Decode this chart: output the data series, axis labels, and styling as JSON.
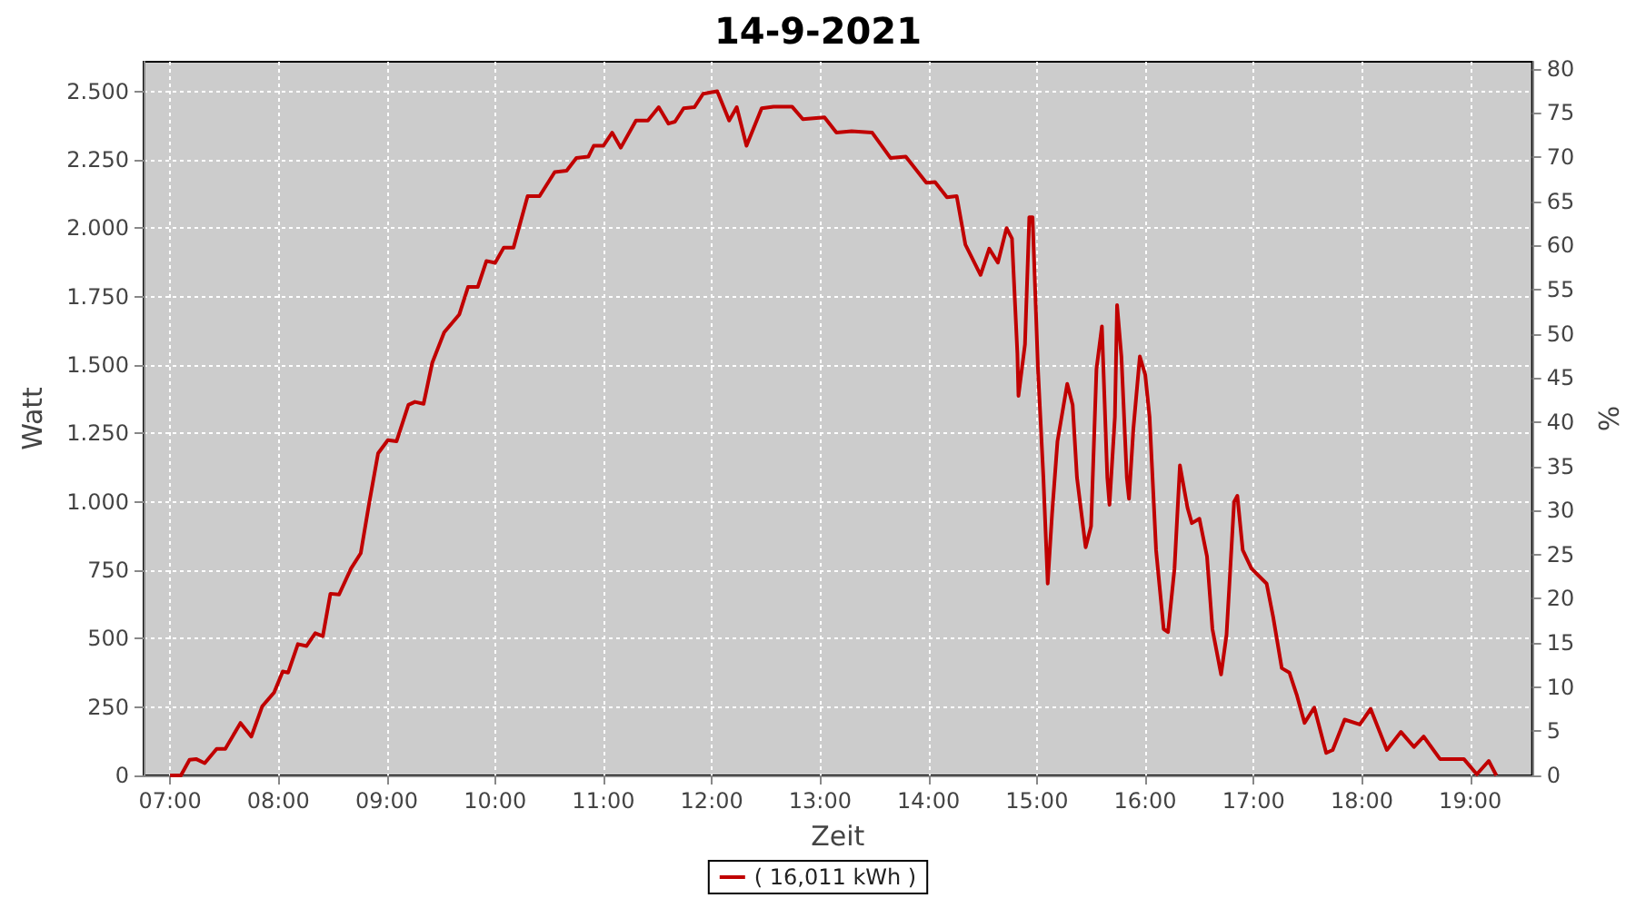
{
  "chart_data": {
    "type": "line",
    "title": "14-9-2021",
    "xlabel": "Zeit",
    "ylabel": "Watt",
    "y2label": "%",
    "x": [
      7.0,
      7.1,
      7.18,
      7.24,
      7.32,
      7.43,
      7.51,
      7.65,
      7.75,
      7.85,
      7.96,
      8.04,
      8.09,
      8.18,
      8.26,
      8.34,
      8.41,
      8.48,
      8.56,
      8.67,
      8.76,
      8.84,
      8.92,
      9.01,
      9.09,
      9.2,
      9.26,
      9.34,
      9.42,
      9.53,
      9.67,
      9.75,
      9.84,
      9.92,
      10.0,
      10.08,
      10.17,
      10.3,
      10.41,
      10.55,
      10.66,
      10.75,
      10.86,
      10.91,
      11.0,
      11.08,
      11.16,
      11.3,
      11.41,
      11.51,
      11.6,
      11.66,
      11.74,
      11.84,
      11.92,
      12.05,
      12.16,
      12.23,
      12.32,
      12.46,
      12.57,
      12.74,
      12.84,
      13.04,
      13.15,
      13.29,
      13.48,
      13.65,
      13.79,
      13.98,
      14.06,
      14.17,
      14.26,
      14.34,
      14.48,
      14.56,
      14.64,
      14.72,
      14.77,
      14.82,
      14.83,
      14.89,
      14.93,
      14.96,
      15.01,
      15.06,
      15.1,
      15.14,
      15.19,
      15.28,
      15.33,
      15.37,
      15.45,
      15.5,
      15.55,
      15.6,
      15.65,
      15.67,
      15.72,
      15.74,
      15.78,
      15.83,
      15.85,
      15.89,
      15.95,
      16.0,
      16.04,
      16.1,
      16.17,
      16.21,
      16.27,
      16.32,
      16.39,
      16.43,
      16.5,
      16.57,
      16.62,
      16.7,
      16.75,
      16.82,
      16.85,
      16.9,
      16.98,
      17.12,
      17.18,
      17.26,
      17.33,
      17.4,
      17.47,
      17.56,
      17.67,
      17.73,
      17.84,
      17.98,
      18.08,
      18.23,
      18.36,
      18.48,
      18.57,
      18.72,
      18.94,
      19.06,
      19.17,
      19.24
    ],
    "series": [
      {
        "name": "( 16,011 kWh )",
        "color": "#c00000",
        "values": [
          0,
          0,
          57,
          60,
          45,
          97,
          97,
          192,
          142,
          252,
          303,
          380,
          376,
          480,
          473,
          520,
          509,
          664,
          661,
          756,
          812,
          1000,
          1177,
          1225,
          1221,
          1354,
          1365,
          1358,
          1508,
          1619,
          1685,
          1785,
          1785,
          1880,
          1873,
          1929,
          1929,
          2117,
          2117,
          2205,
          2210,
          2256,
          2261,
          2301,
          2301,
          2349,
          2294,
          2393,
          2393,
          2442,
          2382,
          2389,
          2438,
          2442,
          2491,
          2500,
          2393,
          2442,
          2301,
          2438,
          2444,
          2444,
          2398,
          2405,
          2349,
          2354,
          2349,
          2256,
          2261,
          2166,
          2168,
          2113,
          2117,
          1940,
          1829,
          1925,
          1874,
          2000,
          1962,
          1542,
          1387,
          1575,
          2040,
          2040,
          1486,
          1088,
          701,
          956,
          1221,
          1431,
          1354,
          1088,
          834,
          911,
          1486,
          1641,
          1088,
          989,
          1310,
          1719,
          1531,
          1088,
          1011,
          1265,
          1531,
          1464,
          1310,
          823,
          535,
          524,
          756,
          1133,
          978,
          922,
          938,
          800,
          535,
          369,
          513,
          1000,
          1022,
          823,
          756,
          701,
          580,
          392,
          376,
          292,
          192,
          248,
          82,
          93,
          204,
          186,
          243,
          93,
          159,
          104,
          142,
          60,
          60,
          4,
          53,
          0
        ]
      }
    ],
    "xlim": [
      6.756,
      19.57
    ],
    "xticks": [
      {
        "value": 7,
        "label": "07:00"
      },
      {
        "value": 8,
        "label": "08:00"
      },
      {
        "value": 9,
        "label": "09:00"
      },
      {
        "value": 10,
        "label": "10:00"
      },
      {
        "value": 11,
        "label": "11:00"
      },
      {
        "value": 12,
        "label": "12:00"
      },
      {
        "value": 13,
        "label": "13:00"
      },
      {
        "value": 14,
        "label": "14:00"
      },
      {
        "value": 15,
        "label": "15:00"
      },
      {
        "value": 16,
        "label": "16:00"
      },
      {
        "value": 17,
        "label": "17:00"
      },
      {
        "value": 18,
        "label": "18:00"
      },
      {
        "value": 19,
        "label": "19:00"
      }
    ],
    "ylim": [
      0,
      2608
    ],
    "yticks": [
      0,
      250,
      500,
      750,
      {
        "value": 1000,
        "label": "1.000"
      },
      {
        "value": 1250,
        "label": "1.250"
      },
      {
        "value": 1500,
        "label": "1.500"
      },
      {
        "value": 1750,
        "label": "1.750"
      },
      {
        "value": 2000,
        "label": "2.000"
      },
      {
        "value": 2250,
        "label": "2.250"
      },
      {
        "value": 2500,
        "label": "2.500"
      }
    ],
    "y2lim": [
      0,
      80.8
    ],
    "y2ticks": [
      0,
      5,
      10,
      15,
      20,
      25,
      30,
      35,
      40,
      45,
      50,
      55,
      60,
      65,
      70,
      75,
      80
    ],
    "grid": true,
    "legend": "bottom",
    "marker": "none",
    "line_style": "solid"
  }
}
